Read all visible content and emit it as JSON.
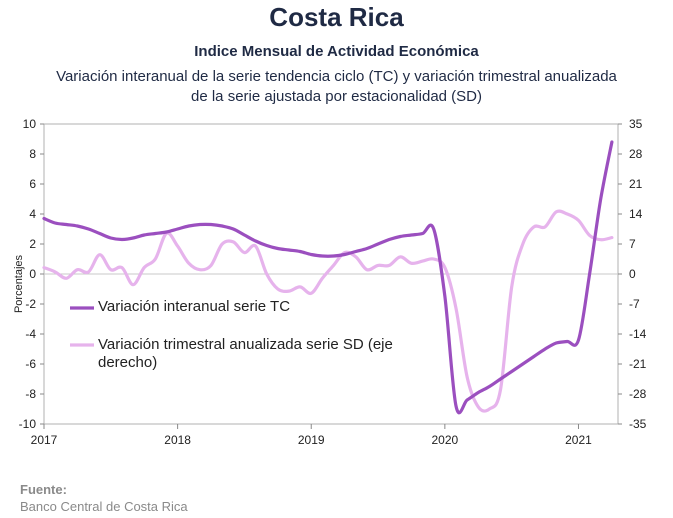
{
  "header": {
    "country": "Costa Rica",
    "subtitle": "Indice Mensual de  Actividad Económica",
    "desc_line1": "Variación interanual de la serie tendencia ciclo (TC) y variación trimestral anualizada",
    "desc_line2": "de la serie ajustada por estacionalidad (SD)"
  },
  "source": {
    "label": "Fuente:",
    "text": "Banco Central de Costa Rica"
  },
  "chart_data": {
    "type": "line",
    "title": "",
    "ylabel": "Porcentajes",
    "ylim": [
      -10,
      10
    ],
    "y2lim": [
      -35,
      35
    ],
    "yticks": [
      -10,
      -8,
      -6,
      -4,
      -2,
      0,
      2,
      4,
      6,
      8,
      10
    ],
    "y2ticks": [
      -35,
      -28,
      -21,
      -14,
      -7,
      0,
      7,
      14,
      21,
      28,
      35
    ],
    "xlim": [
      "2017-01",
      "2021-04"
    ],
    "xticks": [
      "2017",
      "2018",
      "2019",
      "2020",
      "2021"
    ],
    "grid": false,
    "legend_position": "left-center",
    "series": [
      {
        "name": "Variación interanual serie TC",
        "axis": "left",
        "color": "#9b4fbf",
        "x": [
          "2017-01",
          "2017-02",
          "2017-03",
          "2017-04",
          "2017-05",
          "2017-06",
          "2017-07",
          "2017-08",
          "2017-09",
          "2017-10",
          "2017-11",
          "2017-12",
          "2018-01",
          "2018-02",
          "2018-03",
          "2018-04",
          "2018-05",
          "2018-06",
          "2018-07",
          "2018-08",
          "2018-09",
          "2018-10",
          "2018-11",
          "2018-12",
          "2019-01",
          "2019-02",
          "2019-03",
          "2019-04",
          "2019-05",
          "2019-06",
          "2019-07",
          "2019-08",
          "2019-09",
          "2019-10",
          "2019-11",
          "2019-12",
          "2020-01",
          "2020-02",
          "2020-03",
          "2020-04",
          "2020-05",
          "2020-06",
          "2020-07",
          "2020-08",
          "2020-09",
          "2020-10",
          "2020-11",
          "2020-12",
          "2021-01",
          "2021-02",
          "2021-03",
          "2021-04"
        ],
        "values": [
          3.7,
          3.4,
          3.3,
          3.2,
          3.0,
          2.7,
          2.4,
          2.3,
          2.4,
          2.6,
          2.7,
          2.8,
          3.0,
          3.2,
          3.3,
          3.3,
          3.2,
          3.0,
          2.6,
          2.2,
          1.9,
          1.7,
          1.6,
          1.5,
          1.3,
          1.2,
          1.2,
          1.3,
          1.5,
          1.7,
          2.0,
          2.3,
          2.5,
          2.6,
          2.7,
          3.0,
          -1.5,
          -8.8,
          -8.4,
          -7.9,
          -7.5,
          -7.0,
          -6.5,
          -6.0,
          -5.5,
          -5.0,
          -4.6,
          -4.5,
          -4.4,
          0.0,
          5.0,
          8.8
        ]
      },
      {
        "name": "Variación trimestral anualizada serie SD (eje derecho)",
        "axis": "right",
        "color": "#e6b3ec",
        "x": [
          "2017-01",
          "2017-02",
          "2017-03",
          "2017-04",
          "2017-05",
          "2017-06",
          "2017-07",
          "2017-08",
          "2017-09",
          "2017-10",
          "2017-11",
          "2017-12",
          "2018-01",
          "2018-02",
          "2018-03",
          "2018-04",
          "2018-05",
          "2018-06",
          "2018-07",
          "2018-08",
          "2018-09",
          "2018-10",
          "2018-11",
          "2018-12",
          "2019-01",
          "2019-02",
          "2019-03",
          "2019-04",
          "2019-05",
          "2019-06",
          "2019-07",
          "2019-08",
          "2019-09",
          "2019-10",
          "2019-11",
          "2019-12",
          "2020-01",
          "2020-02",
          "2020-03",
          "2020-04",
          "2020-05",
          "2020-06",
          "2020-07",
          "2020-08",
          "2020-09",
          "2020-10",
          "2020-11",
          "2020-12",
          "2021-01",
          "2021-02",
          "2021-03",
          "2021-04"
        ],
        "values": [
          1.5,
          0.5,
          -1.0,
          1.0,
          0.5,
          4.5,
          1.0,
          1.5,
          -2.5,
          1.5,
          3.5,
          9.5,
          6.5,
          2.5,
          1.0,
          2.0,
          7.0,
          7.5,
          5.0,
          6.5,
          0.0,
          -3.5,
          -4.0,
          -3.0,
          -4.5,
          -1.0,
          2.0,
          5.0,
          4.0,
          1.0,
          2.0,
          2.0,
          4.0,
          2.5,
          3.0,
          3.5,
          1.5,
          -8.0,
          -24.0,
          -31.0,
          -31.5,
          -27.0,
          -3.0,
          7.0,
          11.0,
          11.0,
          14.5,
          14.0,
          12.5,
          9.0,
          8.0,
          8.5
        ]
      }
    ]
  }
}
